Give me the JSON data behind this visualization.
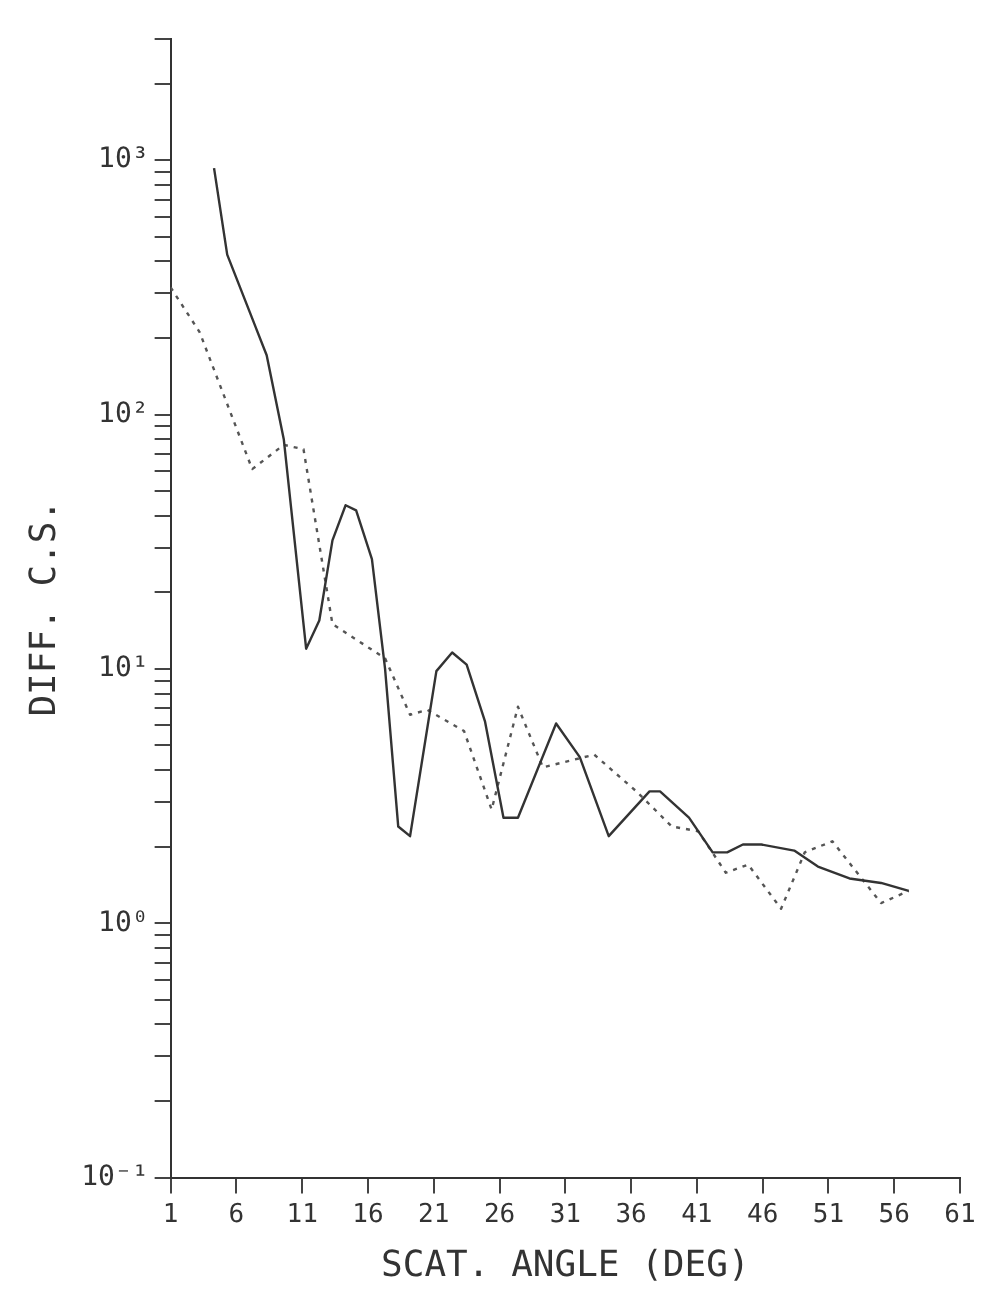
{
  "chart_data": {
    "type": "line",
    "xlabel": "SCAT. ANGLE (DEG)",
    "ylabel": "DIFF. C.S.",
    "log": "y",
    "grid": false,
    "legend": false,
    "xlim": [
      1,
      61
    ],
    "xticks": [
      1,
      6,
      11,
      16,
      21,
      26,
      31,
      36,
      41,
      46,
      51,
      56,
      61
    ],
    "ylim": [
      0.1,
      3000
    ],
    "yticks": [
      {
        "value": 0.1,
        "label": "10⁻¹"
      },
      {
        "value": 0.2,
        "label": null
      },
      {
        "value": 0.3,
        "label": null
      },
      {
        "value": 0.4,
        "label": null
      },
      {
        "value": 0.5,
        "label": null
      },
      {
        "value": 0.6,
        "label": null
      },
      {
        "value": 0.7,
        "label": null
      },
      {
        "value": 0.8,
        "label": null
      },
      {
        "value": 0.9,
        "label": null
      },
      {
        "value": 1,
        "label": "10⁰"
      },
      {
        "value": 2,
        "label": null
      },
      {
        "value": 3,
        "label": null
      },
      {
        "value": 4,
        "label": null
      },
      {
        "value": 5,
        "label": null
      },
      {
        "value": 6,
        "label": null
      },
      {
        "value": 7,
        "label": null
      },
      {
        "value": 8,
        "label": null
      },
      {
        "value": 9,
        "label": null
      },
      {
        "value": 10,
        "label": "10¹"
      },
      {
        "value": 20,
        "label": null
      },
      {
        "value": 30,
        "label": null
      },
      {
        "value": 40,
        "label": null
      },
      {
        "value": 50,
        "label": null
      },
      {
        "value": 60,
        "label": null
      },
      {
        "value": 70,
        "label": null
      },
      {
        "value": 80,
        "label": null
      },
      {
        "value": 90,
        "label": null
      },
      {
        "value": 100,
        "label": "10²"
      },
      {
        "value": 200,
        "label": null
      },
      {
        "value": 300,
        "label": null
      },
      {
        "value": 400,
        "label": null
      },
      {
        "value": 500,
        "label": null
      },
      {
        "value": 600,
        "label": null
      },
      {
        "value": 700,
        "label": null
      },
      {
        "value": 800,
        "label": null
      },
      {
        "value": 900,
        "label": null
      },
      {
        "value": 1000,
        "label": "10³"
      },
      {
        "value": 2000,
        "label": null
      },
      {
        "value": 3000,
        "label": null
      }
    ],
    "series": [
      {
        "color": "#333333",
        "line_style": "solid",
        "x": [
          4.3,
          5.3,
          8.3,
          9.6,
          11.3,
          12.3,
          13.3,
          14.3,
          15.1,
          16.3,
          17.3,
          18.3,
          19.2,
          21.2,
          22.4,
          23.5,
          24.9,
          26.3,
          27.4,
          30.3,
          32.1,
          34.3,
          37.4,
          38.2,
          40.4,
          42.2,
          43.3,
          44.5,
          45.9,
          48.4,
          50.2,
          52.6,
          55.0,
          57.1
        ],
        "values": [
          930,
          425,
          171,
          80,
          12,
          15.5,
          32,
          44,
          42,
          27,
          10,
          2.4,
          2.2,
          9.8,
          11.6,
          10.4,
          6.2,
          2.6,
          2.6,
          6.1,
          4.5,
          2.2,
          3.3,
          3.3,
          2.6,
          1.9,
          1.9,
          2.04,
          2.04,
          1.93,
          1.67,
          1.5,
          1.44,
          1.34
        ]
      },
      {
        "color": "#555555",
        "line_style": "dotted",
        "x": [
          1,
          3.2,
          7.2,
          9.6,
          11.1,
          13.3,
          17.3,
          19.2,
          20.5,
          23.3,
          25.4,
          27.4,
          29.3,
          33.2,
          36.4,
          39.1,
          41.1,
          43.2,
          44.9,
          47.4,
          49.2,
          51.3,
          55.0,
          57.1
        ],
        "values": [
          316,
          211,
          61,
          76,
          73,
          15,
          11,
          6.6,
          6.9,
          5.7,
          2.8,
          7.1,
          4.1,
          4.6,
          3.3,
          2.4,
          2.3,
          1.58,
          1.7,
          1.14,
          1.9,
          2.1,
          1.2,
          1.34
        ]
      }
    ]
  }
}
